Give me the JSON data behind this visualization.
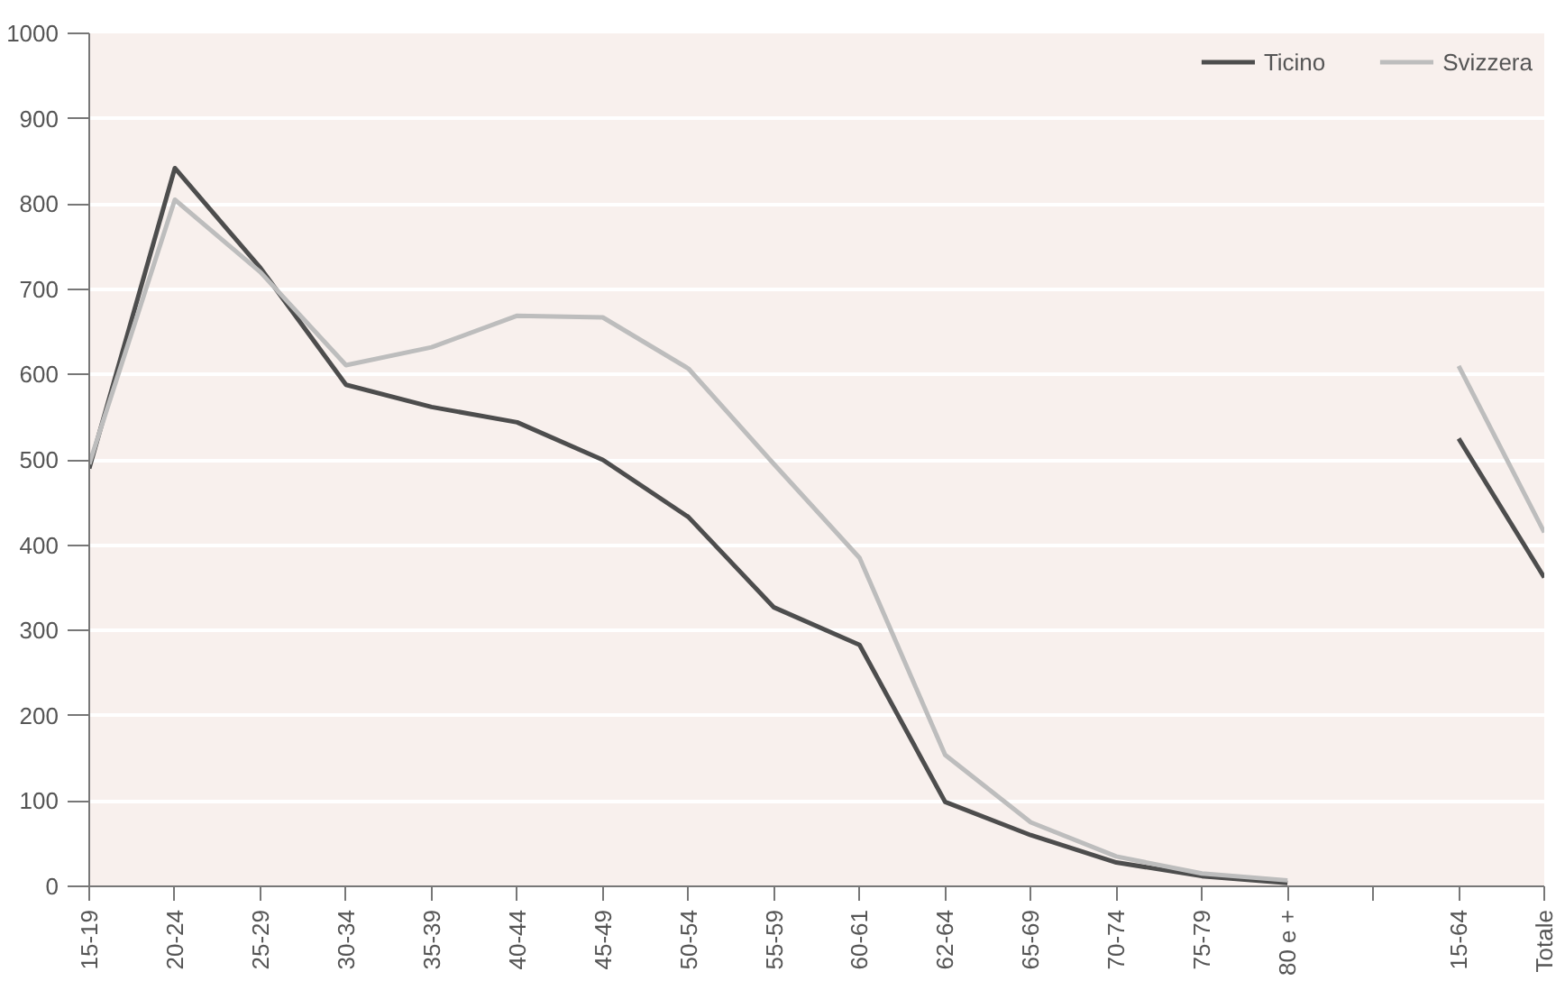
{
  "chart_data": {
    "type": "line",
    "categories": [
      "15-19",
      "20-24",
      "25-29",
      "30-34",
      "35-39",
      "40-44",
      "45-49",
      "50-54",
      "55-59",
      "60-61",
      "62-64",
      "65-69",
      "70-74",
      "75-79",
      "80 e +",
      null,
      "15-64",
      "Totale"
    ],
    "series": [
      {
        "name": "Ticino",
        "color": "#4d4d4d",
        "values": [
          490,
          842,
          725,
          588,
          562,
          544,
          500,
          433,
          327,
          283,
          99,
          60,
          28,
          12,
          4,
          null,
          525,
          362
        ]
      },
      {
        "name": "Svizzera",
        "color": "#bdbdbd",
        "values": [
          495,
          805,
          720,
          611,
          632,
          669,
          667,
          607,
          495,
          385,
          154,
          75,
          35,
          15,
          7,
          null,
          610,
          415
        ]
      }
    ],
    "ylim": [
      0,
      1000
    ],
    "yticks": [
      0,
      100,
      200,
      300,
      400,
      500,
      600,
      700,
      800,
      900,
      1000
    ],
    "grid": "y",
    "legend": "top right",
    "line_style": "solid"
  }
}
